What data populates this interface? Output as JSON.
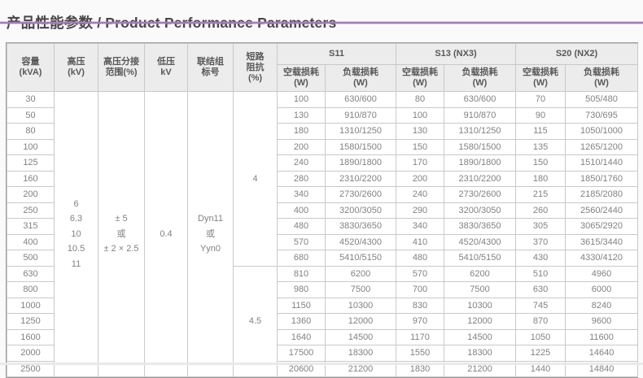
{
  "header": {
    "title_zh": "产品性能参数",
    "title_sep": "/",
    "title_en": "Product Performance Parameters",
    "accent_color": "#a87ab8"
  },
  "table": {
    "left_headers": [
      "容量\n(kVA)",
      "高压\n(kV)",
      "高压分接\n范围(%)",
      "低压\nkV",
      "联结组\n标号",
      "短路\n阻抗\n(%)"
    ],
    "groups": [
      {
        "label": "S11"
      },
      {
        "label": "S13 (NX3)"
      },
      {
        "label": "S20 (NX2)"
      }
    ],
    "sub_headers": [
      "空载损耗\n(W)",
      "负载损耗\n(W)"
    ],
    "merged": {
      "hv_values": "6\n6.3\n10\n10.5\n11",
      "tap_range": "± 5\n或\n± 2 × 2.5",
      "lv_value": "0.4",
      "vector_group": "Dyn11\n或\nYyn0",
      "impedance": [
        {
          "value": "4",
          "row_span": 11
        },
        {
          "value": "4.5",
          "row_span": 7
        }
      ]
    },
    "rows": [
      {
        "kva": "30",
        "cells": [
          "100",
          "630/600",
          "80",
          "630/600",
          "70",
          "505/480"
        ]
      },
      {
        "kva": "50",
        "cells": [
          "130",
          "910/870",
          "100",
          "910/870",
          "90",
          "730/695"
        ]
      },
      {
        "kva": "80",
        "cells": [
          "180",
          "1310/1250",
          "130",
          "1310/1250",
          "115",
          "1050/1000"
        ]
      },
      {
        "kva": "100",
        "cells": [
          "200",
          "1580/1500",
          "150",
          "1580/1500",
          "135",
          "1265/1200"
        ]
      },
      {
        "kva": "125",
        "cells": [
          "240",
          "1890/1800",
          "170",
          "1890/1800",
          "150",
          "1510/1440"
        ]
      },
      {
        "kva": "160",
        "cells": [
          "280",
          "2310/2200",
          "200",
          "2310/2200",
          "180",
          "1850/1760"
        ]
      },
      {
        "kva": "200",
        "cells": [
          "340",
          "2730/2600",
          "240",
          "2730/2600",
          "215",
          "2185/2080"
        ]
      },
      {
        "kva": "250",
        "cells": [
          "400",
          "3200/3050",
          "290",
          "3200/3050",
          "260",
          "2560/2440"
        ]
      },
      {
        "kva": "315",
        "cells": [
          "480",
          "3830/3650",
          "340",
          "3830/3650",
          "305",
          "3065/2920"
        ]
      },
      {
        "kva": "400",
        "cells": [
          "570",
          "4520/4300",
          "410",
          "4520/4300",
          "370",
          "3615/3440"
        ]
      },
      {
        "kva": "500",
        "cells": [
          "680",
          "5410/5150",
          "480",
          "5410/5150",
          "430",
          "4330/4120"
        ]
      },
      {
        "kva": "630",
        "cells": [
          "810",
          "6200",
          "570",
          "6200",
          "510",
          "4960"
        ]
      },
      {
        "kva": "800",
        "cells": [
          "980",
          "7500",
          "700",
          "7500",
          "630",
          "6000"
        ]
      },
      {
        "kva": "1000",
        "cells": [
          "1150",
          "10300",
          "830",
          "10300",
          "745",
          "8240"
        ]
      },
      {
        "kva": "1250",
        "cells": [
          "1360",
          "12000",
          "970",
          "12000",
          "870",
          "9600"
        ]
      },
      {
        "kva": "1600",
        "cells": [
          "1640",
          "14500",
          "1170",
          "14500",
          "1050",
          "11600"
        ]
      },
      {
        "kva": "2000",
        "cells": [
          "17500",
          "18300",
          "1550",
          "18300",
          "1225",
          "14640"
        ]
      },
      {
        "kva": "2500",
        "cells": [
          "20600",
          "21200",
          "1830",
          "21200",
          "1440",
          "14840"
        ]
      }
    ]
  }
}
